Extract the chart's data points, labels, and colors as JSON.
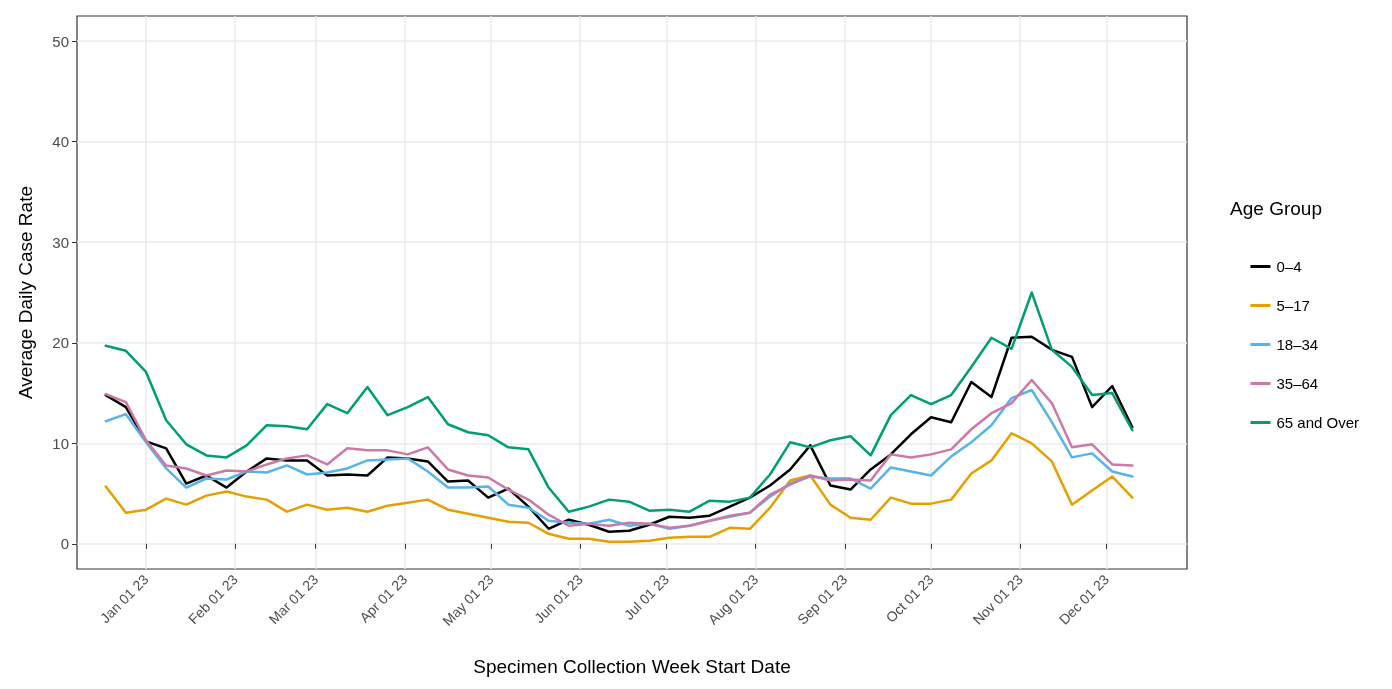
{
  "chart_data": {
    "type": "line",
    "xlabel": "Specimen Collection Week Start Date",
    "ylabel": "Average Daily Case Rate",
    "legend_title": "Age Group",
    "legend": "right",
    "grid": true,
    "marker": "none",
    "line_style": "solid",
    "x": [
      "2022-12-18",
      "2022-12-25",
      "2023-01-01",
      "2023-01-08",
      "2023-01-15",
      "2023-01-22",
      "2023-01-29",
      "2023-02-05",
      "2023-02-12",
      "2023-02-19",
      "2023-02-26",
      "2023-03-05",
      "2023-03-12",
      "2023-03-19",
      "2023-03-26",
      "2023-04-02",
      "2023-04-09",
      "2023-04-16",
      "2023-04-23",
      "2023-04-30",
      "2023-05-07",
      "2023-05-14",
      "2023-05-21",
      "2023-05-28",
      "2023-06-04",
      "2023-06-11",
      "2023-06-18",
      "2023-06-25",
      "2023-07-02",
      "2023-07-09",
      "2023-07-16",
      "2023-07-23",
      "2023-07-30",
      "2023-08-06",
      "2023-08-13",
      "2023-08-20",
      "2023-08-27",
      "2023-09-03",
      "2023-09-10",
      "2023-09-17",
      "2023-09-24",
      "2023-10-01",
      "2023-10-08",
      "2023-10-15",
      "2023-10-22",
      "2023-10-29",
      "2023-11-05",
      "2023-11-12",
      "2023-11-19",
      "2023-11-26",
      "2023-12-03",
      "2023-12-10"
    ],
    "xlim": [
      "2022-12-08",
      "2023-12-29"
    ],
    "xticks": [
      {
        "value": "2023-01-01",
        "label": "Jan 01 23"
      },
      {
        "value": "2023-02-01",
        "label": "Feb 01 23"
      },
      {
        "value": "2023-03-01",
        "label": "Mar 01 23"
      },
      {
        "value": "2023-04-01",
        "label": "Apr 01 23"
      },
      {
        "value": "2023-05-01",
        "label": "May 01 23"
      },
      {
        "value": "2023-06-01",
        "label": "Jun 01 23"
      },
      {
        "value": "2023-07-01",
        "label": "Jul 01 23"
      },
      {
        "value": "2023-08-01",
        "label": "Aug 01 23"
      },
      {
        "value": "2023-09-01",
        "label": "Sep 01 23"
      },
      {
        "value": "2023-10-01",
        "label": "Oct 01 23"
      },
      {
        "value": "2023-11-01",
        "label": "Nov 01 23"
      },
      {
        "value": "2023-12-01",
        "label": "Dec 01 23"
      }
    ],
    "ylim": [
      -2.5,
      52.5
    ],
    "yticks": [
      0,
      10,
      20,
      30,
      40,
      50
    ],
    "series": [
      {
        "name": "0–4",
        "color": "#000000",
        "values": [
          14.8,
          13.6,
          10.2,
          9.5,
          6.0,
          6.8,
          5.6,
          7.2,
          8.5,
          8.3,
          8.3,
          6.8,
          6.9,
          6.8,
          8.6,
          8.5,
          8.2,
          6.2,
          6.3,
          4.6,
          5.5,
          3.7,
          1.5,
          2.4,
          1.9,
          1.2,
          1.3,
          1.9,
          2.7,
          2.6,
          2.8,
          3.7,
          4.6,
          5.8,
          7.4,
          9.8,
          5.8,
          5.4,
          7.4,
          8.9,
          10.9,
          12.6,
          12.1,
          16.1,
          14.6,
          20.5,
          20.6,
          19.3,
          18.6,
          13.6,
          15.7,
          11.6
        ]
      },
      {
        "name": "5–17",
        "color": "#e69f00",
        "values": [
          5.7,
          3.1,
          3.4,
          4.5,
          3.9,
          4.8,
          5.2,
          4.7,
          4.4,
          3.2,
          3.9,
          3.4,
          3.6,
          3.2,
          3.8,
          4.1,
          4.4,
          3.4,
          3.0,
          2.6,
          2.2,
          2.1,
          1.0,
          0.5,
          0.5,
          0.2,
          0.2,
          0.3,
          0.6,
          0.7,
          0.7,
          1.6,
          1.5,
          3.6,
          6.3,
          6.8,
          3.9,
          2.6,
          2.4,
          4.6,
          4.0,
          4.0,
          4.4,
          7.0,
          8.3,
          11.0,
          10.0,
          8.2,
          3.9,
          5.3,
          6.7,
          4.6
        ]
      },
      {
        "name": "18–34",
        "color": "#56b4e9",
        "values": [
          12.2,
          12.9,
          10.1,
          7.5,
          5.6,
          6.5,
          6.4,
          7.2,
          7.1,
          7.8,
          6.9,
          7.1,
          7.5,
          8.3,
          8.4,
          8.5,
          7.2,
          5.6,
          5.6,
          5.7,
          3.9,
          3.6,
          2.3,
          2.1,
          2.0,
          2.4,
          1.8,
          2.0,
          1.5,
          1.8,
          2.3,
          2.7,
          3.1,
          4.7,
          6.0,
          6.7,
          6.5,
          6.5,
          5.5,
          7.6,
          7.2,
          6.8,
          8.7,
          10.1,
          11.8,
          14.5,
          15.3,
          12.1,
          8.6,
          9.0,
          7.2,
          6.7
        ]
      },
      {
        "name": "35–64",
        "color": "#cc79a7",
        "values": [
          14.9,
          14.1,
          10.3,
          7.8,
          7.5,
          6.8,
          7.3,
          7.2,
          7.9,
          8.5,
          8.8,
          7.9,
          9.5,
          9.3,
          9.3,
          8.9,
          9.6,
          7.4,
          6.8,
          6.6,
          5.4,
          4.4,
          2.9,
          1.8,
          2.0,
          1.8,
          2.1,
          2.0,
          1.6,
          1.8,
          2.3,
          2.8,
          3.1,
          4.9,
          5.9,
          6.8,
          6.3,
          6.4,
          6.3,
          8.9,
          8.6,
          8.9,
          9.4,
          11.4,
          13.0,
          14.0,
          16.3,
          14.0,
          9.6,
          9.9,
          7.9,
          7.8
        ]
      },
      {
        "name": "65 and Over",
        "color": "#009e73",
        "values": [
          19.7,
          19.2,
          17.1,
          12.3,
          9.9,
          8.8,
          8.6,
          9.8,
          11.8,
          11.7,
          11.4,
          13.9,
          13.0,
          15.6,
          12.8,
          13.6,
          14.6,
          11.9,
          11.1,
          10.8,
          9.6,
          9.4,
          5.6,
          3.2,
          3.7,
          4.4,
          4.2,
          3.3,
          3.4,
          3.2,
          4.3,
          4.2,
          4.6,
          6.9,
          10.1,
          9.6,
          10.3,
          10.7,
          8.8,
          12.8,
          14.8,
          13.9,
          14.8,
          17.6,
          20.5,
          19.4,
          25.0,
          19.3,
          17.6,
          14.8,
          15.0,
          11.3
        ]
      }
    ]
  }
}
